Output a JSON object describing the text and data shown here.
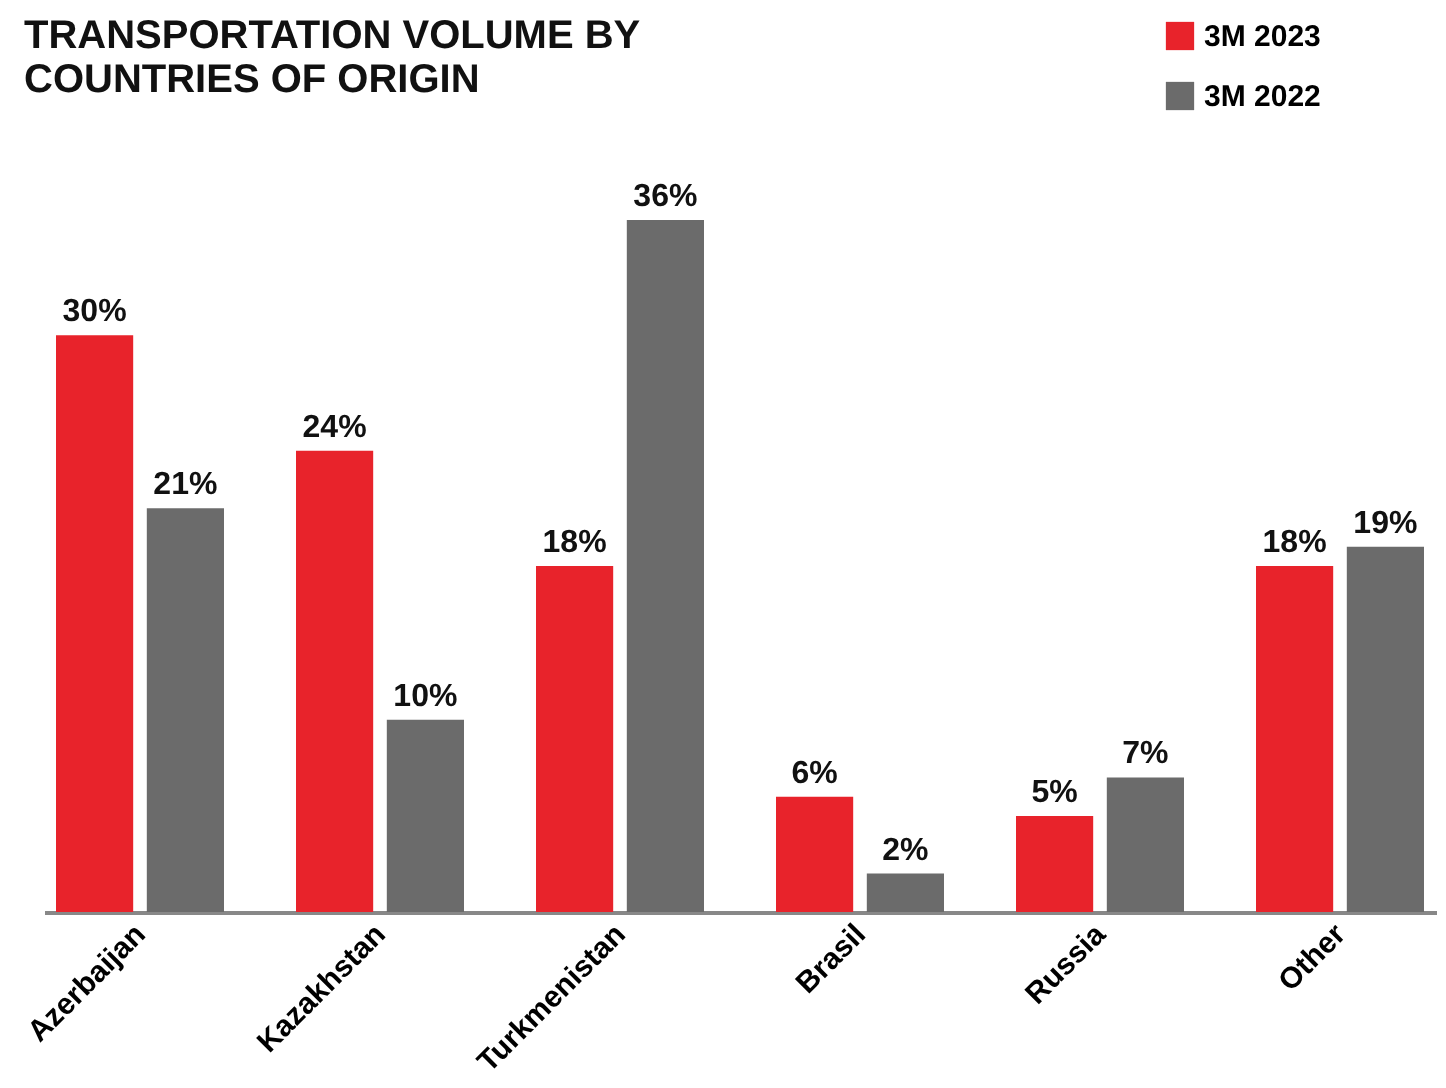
{
  "chart_data": {
    "type": "bar",
    "title": "TRANSPORTATION VOLUME BY COUNTRIES OF ORIGIN",
    "categories": [
      "Azerbaijan",
      "Kazakhstan",
      "Turkmenistan",
      "Brasil",
      "Russia",
      "Other"
    ],
    "legend": "top right",
    "series": [
      {
        "name": "3M 2023",
        "color": "#e8232b",
        "values": [
          30,
          24,
          18,
          6,
          5,
          18
        ],
        "value_labels": [
          "30%",
          "24%",
          "18%",
          "6%",
          "5%",
          "18%"
        ]
      },
      {
        "name": "3M 2022",
        "color": "#6b6b6b",
        "values": [
          21,
          10,
          36,
          2,
          7,
          19
        ],
        "value_labels": [
          "21%",
          "10%",
          "36%",
          "2%",
          "7%",
          "19%"
        ]
      }
    ]
  }
}
